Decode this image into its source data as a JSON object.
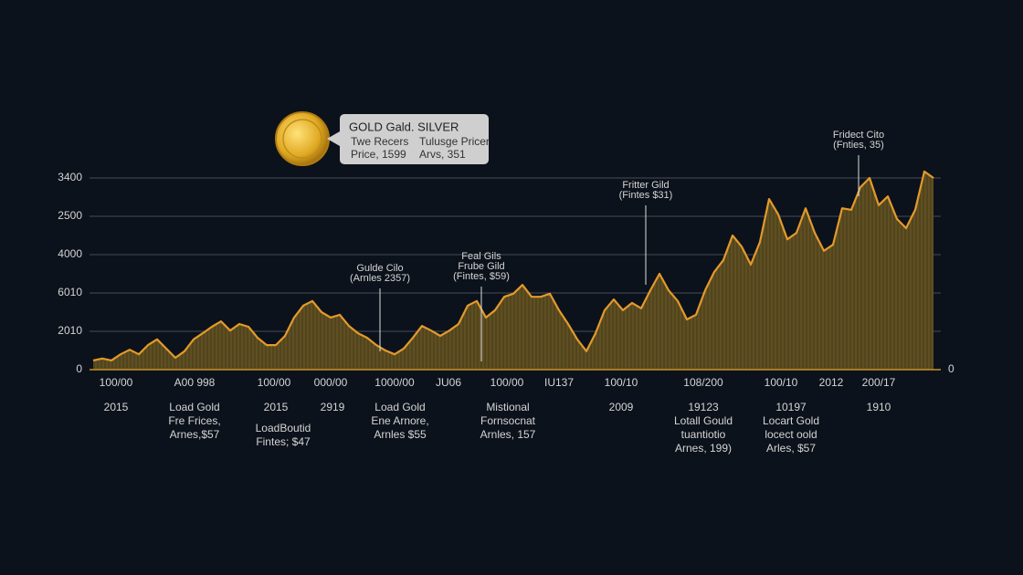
{
  "chart_data": {
    "type": "area",
    "legend": {
      "title": "GOLD Gald. SILVER",
      "entries": [
        [
          "Twe Recers",
          "Price, 1599"
        ],
        [
          "Tulusge Pricer",
          "Arvs, 351"
        ]
      ]
    },
    "ylim": [
      0,
      5.25
    ],
    "yticks": [
      0,
      {
        "value": 1,
        "label": "2010"
      },
      {
        "value": 2,
        "label": "6010"
      },
      {
        "value": 3,
        "label": "4000"
      },
      {
        "value": 4,
        "label": "2500"
      },
      {
        "value": 5,
        "label": "3400"
      }
    ],
    "y2lim": [
      0,
      5.25
    ],
    "y2ticks": [
      0
    ],
    "grid": true,
    "line_color": "#e39a2c",
    "fill_color": "#5b4b1f",
    "xtick_labels": [
      "100/00",
      "A00 998",
      "100/00",
      "000/00",
      "1000/00",
      "JU06",
      "100/00",
      "IU137",
      "100/10",
      "108/200",
      "100/10",
      "2012",
      "200/17"
    ],
    "bottom_labels": [
      [
        "2015"
      ],
      [
        "Load Gold",
        "Fre Frices,",
        "Arnes,$57"
      ],
      [
        "2015"
      ],
      [
        "LoadBoutid",
        "Fintes; $47"
      ],
      [
        "2919"
      ],
      [
        "Load Gold",
        "Ene Arnore,",
        "Arnles $55"
      ],
      [
        "Mistional",
        "Fornsocnat",
        "Arnles, 157"
      ],
      [
        "2009"
      ],
      [
        "19123",
        "Lotall Gould",
        "tuantiotio",
        "Arnes, 199)"
      ],
      [
        "10197",
        "Locart Gold",
        "locect oold",
        "Arles, $57"
      ],
      [
        "1910"
      ]
    ],
    "annotations": [
      [
        "Gulde Cilo",
        "(Arnles 2357)"
      ],
      [
        "Feal Gils",
        "Frube Gild",
        "(Fintes, $59)"
      ],
      [
        "Fritter Gild",
        "(Fintes $31)"
      ],
      [
        "Fridect Cito",
        "(Fnties, 35)"
      ]
    ],
    "values": [
      0.24,
      0.29,
      0.24,
      0.4,
      0.52,
      0.4,
      0.64,
      0.79,
      0.55,
      0.31,
      0.48,
      0.79,
      0.95,
      1.12,
      1.26,
      1.02,
      1.19,
      1.12,
      0.83,
      0.64,
      0.64,
      0.88,
      1.36,
      1.67,
      1.79,
      1.5,
      1.36,
      1.43,
      1.14,
      0.95,
      0.83,
      0.64,
      0.5,
      0.4,
      0.55,
      0.83,
      1.14,
      1.02,
      0.88,
      1.02,
      1.19,
      1.67,
      1.79,
      1.36,
      1.55,
      1.9,
      1.98,
      2.21,
      1.9,
      1.9,
      1.98,
      1.55,
      1.19,
      0.79,
      0.48,
      0.95,
      1.55,
      1.83,
      1.55,
      1.74,
      1.6,
      2.07,
      2.5,
      2.07,
      1.79,
      1.31,
      1.43,
      2.07,
      2.55,
      2.86,
      3.5,
      3.21,
      2.74,
      3.33,
      4.45,
      4.05,
      3.4,
      3.57,
      4.21,
      3.57,
      3.1,
      3.26,
      4.21,
      4.17,
      4.76,
      5.0,
      4.29,
      4.52,
      3.93,
      3.69,
      4.17,
      5.17,
      5.0
    ]
  }
}
